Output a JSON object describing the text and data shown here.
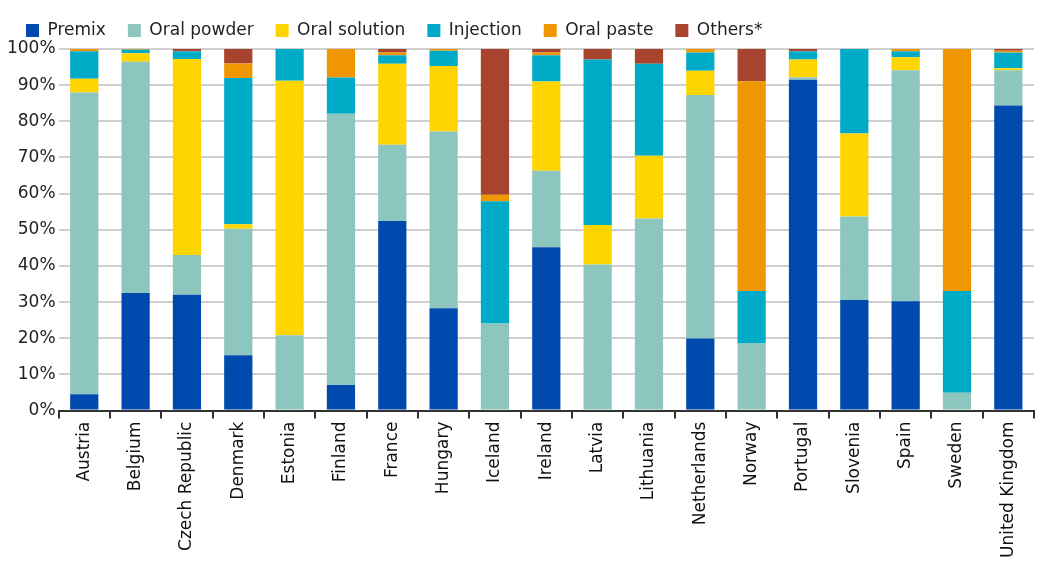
{
  "chart_data": {
    "type": "bar",
    "stacked": true,
    "categories": [
      "Austria",
      "Belgium",
      "Czech Republic",
      "Denmark",
      "Estonia",
      "Finland",
      "France",
      "Hungary",
      "Iceland",
      "Ireland",
      "Latvia",
      "Lithuania",
      "Netherlands",
      "Norway",
      "Portugal",
      "Slovenia",
      "Spain",
      "Sweden",
      "United Kingdom"
    ],
    "series": [
      {
        "name": "Premix",
        "color": "#004aad",
        "values": [
          4.5,
          32.5,
          32,
          15.3,
          0,
          7.1,
          52.4,
          28.3,
          0,
          45.2,
          0,
          0,
          19.9,
          0,
          91.5,
          30.6,
          30.2,
          0,
          84.4
        ]
      },
      {
        "name": "Oral powder",
        "color": "#8dc5bf",
        "values": [
          83.5,
          64,
          11,
          35,
          20.8,
          75,
          21.1,
          48.9,
          24.1,
          21.1,
          40.4,
          53.1,
          67.4,
          18.7,
          0.7,
          23.1,
          63.9,
          4.9,
          9.7
        ]
      },
      {
        "name": "Oral solution",
        "color": "#ffd500",
        "values": [
          3.8,
          2.3,
          54.2,
          1.2,
          70.4,
          0,
          22.4,
          18.1,
          0,
          24.7,
          10.9,
          17.4,
          6.7,
          0,
          4.9,
          22.9,
          3.6,
          0,
          0.6
        ]
      },
      {
        "name": "Injection",
        "color": "#00abc8",
        "values": [
          7.6,
          1,
          2.2,
          40.5,
          8.8,
          10,
          2.4,
          4.2,
          33.8,
          7.3,
          45.8,
          25.4,
          5,
          14.4,
          2.3,
          23.4,
          1.7,
          28.2,
          4.3
        ]
      },
      {
        "name": "Oral paste",
        "color": "#f09600",
        "values": [
          0.6,
          0.2,
          0,
          4,
          0,
          7.9,
          0.7,
          0.5,
          1.8,
          0.7,
          0,
          0,
          1,
          58,
          0,
          0,
          0.6,
          66.9,
          0.5
        ]
      },
      {
        "name": "Others*",
        "color": "#a8432e",
        "values": [
          0,
          0,
          0.6,
          4,
          0,
          0,
          1,
          0,
          40.3,
          1,
          2.9,
          4.1,
          0,
          8.9,
          0.6,
          0,
          0,
          0,
          0.5
        ]
      }
    ],
    "ylim": [
      0,
      100
    ],
    "yticks": [
      {
        "value": 0,
        "label": "0%"
      },
      {
        "value": 10,
        "label": "10%"
      },
      {
        "value": 20,
        "label": "20%"
      },
      {
        "value": 30,
        "label": "30%"
      },
      {
        "value": 40,
        "label": "40%"
      },
      {
        "value": 50,
        "label": "50%"
      },
      {
        "value": 60,
        "label": "60%"
      },
      {
        "value": 70,
        "label": "70%"
      },
      {
        "value": 80,
        "label": "80%"
      },
      {
        "value": 90,
        "label": "90%"
      },
      {
        "value": 100,
        "label": "100%"
      }
    ],
    "grid": "y",
    "legend": "top left"
  }
}
